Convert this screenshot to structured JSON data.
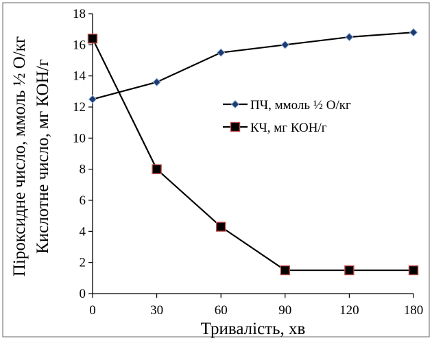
{
  "chart_data": {
    "type": "line",
    "xlabel": "Тривалість, хв",
    "ylabel_lines": [
      "Пiроксидне число, ммоль ½ О/кг",
      "Кислотне число, мг КОН/г"
    ],
    "x": [
      0,
      30,
      60,
      90,
      120,
      180
    ],
    "x_tick_labels": [
      "0",
      "30",
      "60",
      "90",
      "120",
      "180"
    ],
    "ylim": [
      0,
      18
    ],
    "y_ticks": [
      0,
      2,
      4,
      6,
      8,
      10,
      12,
      14,
      16,
      18
    ],
    "grid": false,
    "legend_position": "right-middle",
    "series": [
      {
        "name": "ПЧ, ммоль ½ О/кг",
        "marker": "diamond",
        "line_color": "#000000",
        "marker_fill": "#1f3a6e",
        "marker_stroke": "#8fb4e0",
        "values": [
          12.5,
          13.6,
          15.5,
          16.0,
          16.5,
          16.8
        ]
      },
      {
        "name": "КЧ, мг КОН/г",
        "marker": "square",
        "line_color": "#000000",
        "marker_fill": "#000000",
        "marker_stroke": "#c0504d",
        "values": [
          16.4,
          8.0,
          4.3,
          1.5,
          1.5,
          1.5
        ]
      }
    ]
  }
}
